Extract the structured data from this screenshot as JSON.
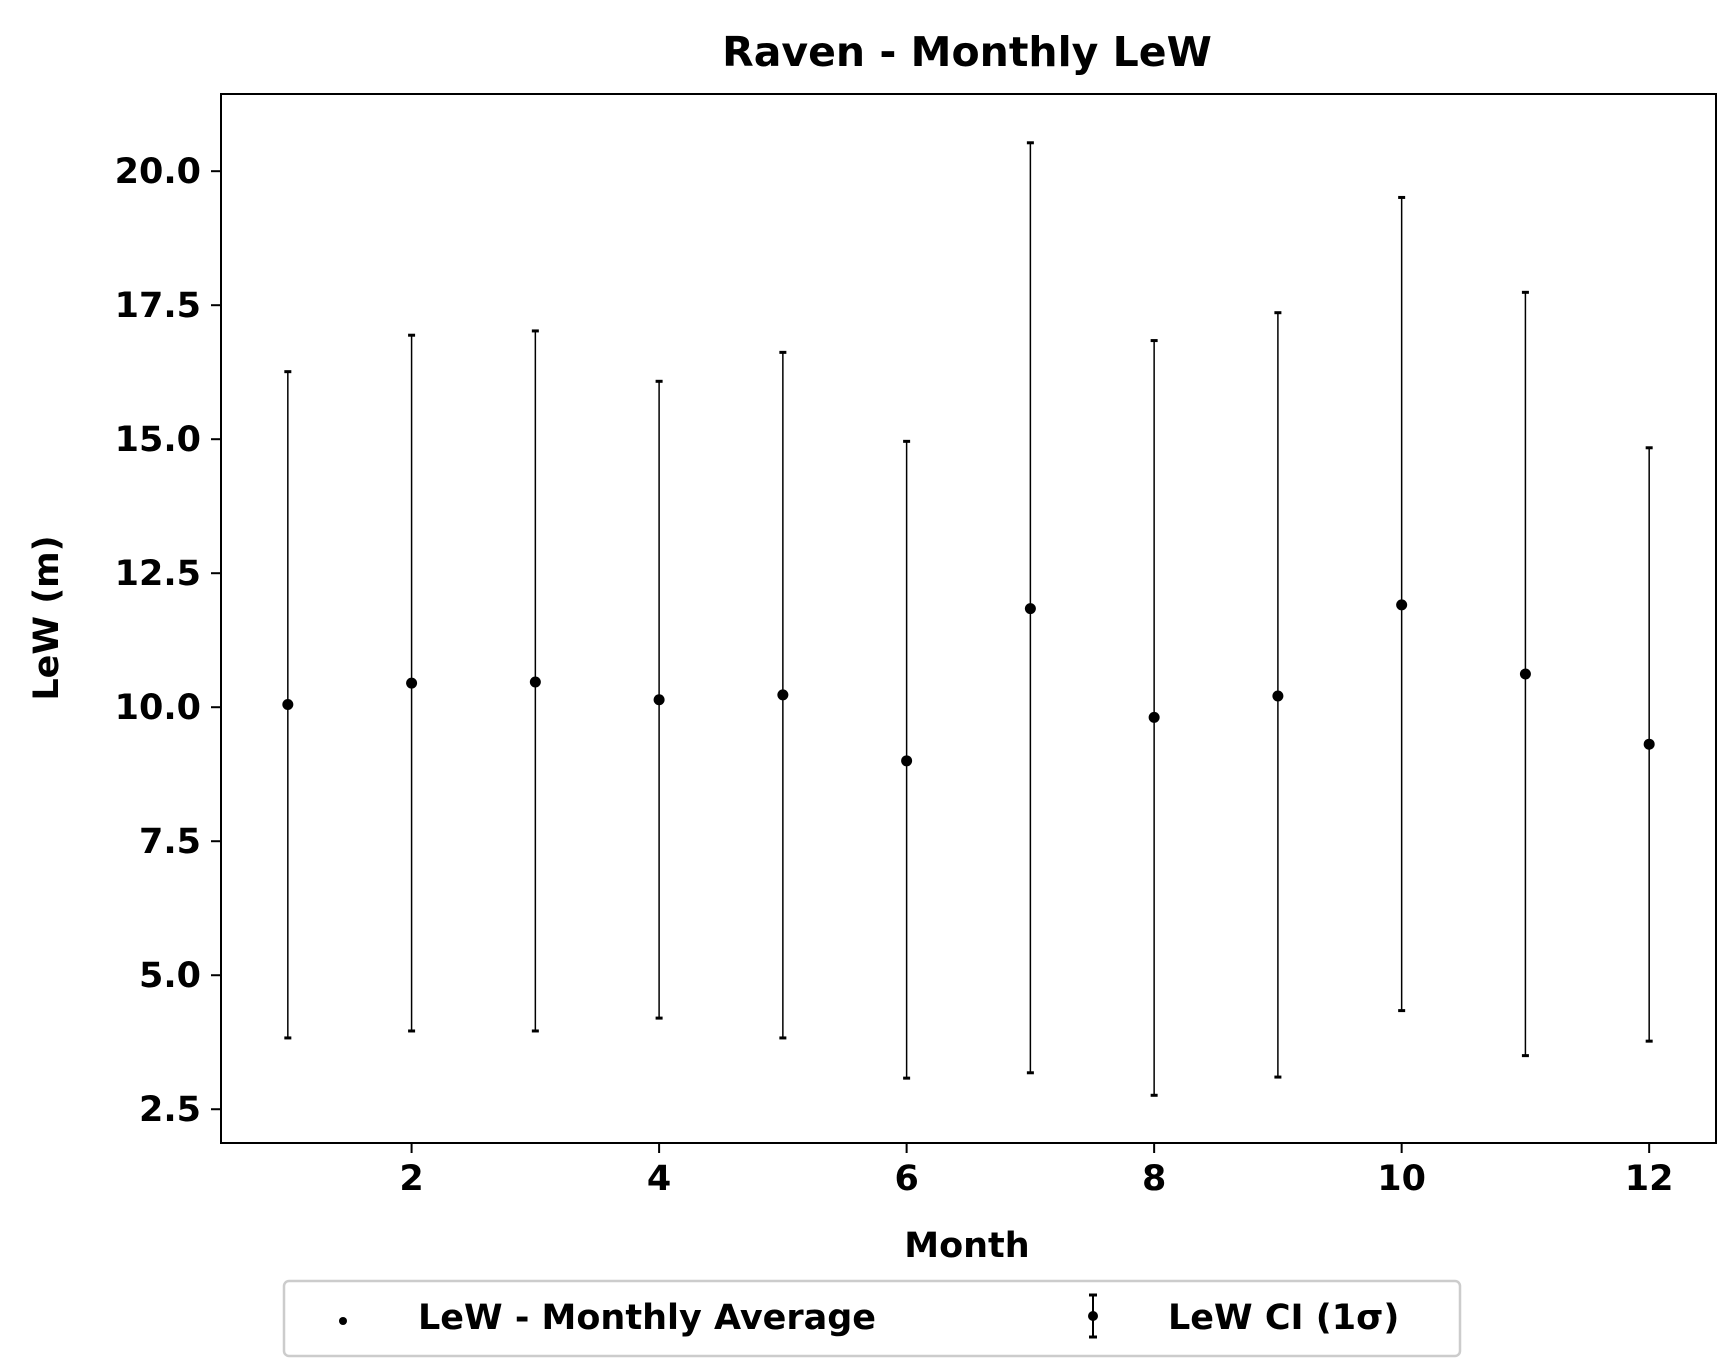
{
  "chart_data": {
    "type": "scatter",
    "title": "Raven - Monthly LeW",
    "xlabel": "Month",
    "ylabel": "LeW (m)",
    "xlim": [
      0.46,
      12.54
    ],
    "ylim": [
      1.87,
      21.44
    ],
    "xticks": [
      2,
      4,
      6,
      8,
      10,
      12
    ],
    "xtick_labels": [
      "2",
      "4",
      "6",
      "8",
      "10",
      "12"
    ],
    "yticks": [
      2.5,
      5.0,
      7.5,
      10.0,
      12.5,
      15.0,
      17.5,
      20.0
    ],
    "ytick_labels": [
      "2.5",
      "5.0",
      "7.5",
      "10.0",
      "12.5",
      "15.0",
      "17.5",
      "20.0"
    ],
    "grid": false,
    "legend_position": "bottom-center",
    "series": [
      {
        "name": "LeW - Monthly Average",
        "kind": "points",
        "x": [
          1,
          2,
          3,
          4,
          5,
          6,
          7,
          8,
          9,
          10,
          11,
          12
        ],
        "y": [
          10.05,
          10.45,
          10.47,
          10.14,
          10.23,
          9.0,
          11.84,
          9.81,
          10.21,
          11.91,
          10.62,
          9.31
        ]
      },
      {
        "name": "LeW CI (1σ)",
        "kind": "errorbar",
        "x": [
          1,
          2,
          3,
          4,
          5,
          6,
          7,
          8,
          9,
          10,
          11,
          12
        ],
        "low": [
          3.83,
          3.96,
          3.96,
          4.2,
          3.83,
          3.08,
          3.18,
          2.76,
          3.1,
          4.34,
          3.5,
          3.77
        ],
        "high": [
          16.26,
          16.94,
          17.02,
          16.08,
          16.62,
          14.96,
          20.53,
          16.84,
          17.36,
          19.51,
          17.74,
          14.84
        ]
      }
    ],
    "colors": {
      "marker": "#000000",
      "errorbar": "#000000",
      "axes": "#000000",
      "legend_border": "#cccccc"
    }
  }
}
